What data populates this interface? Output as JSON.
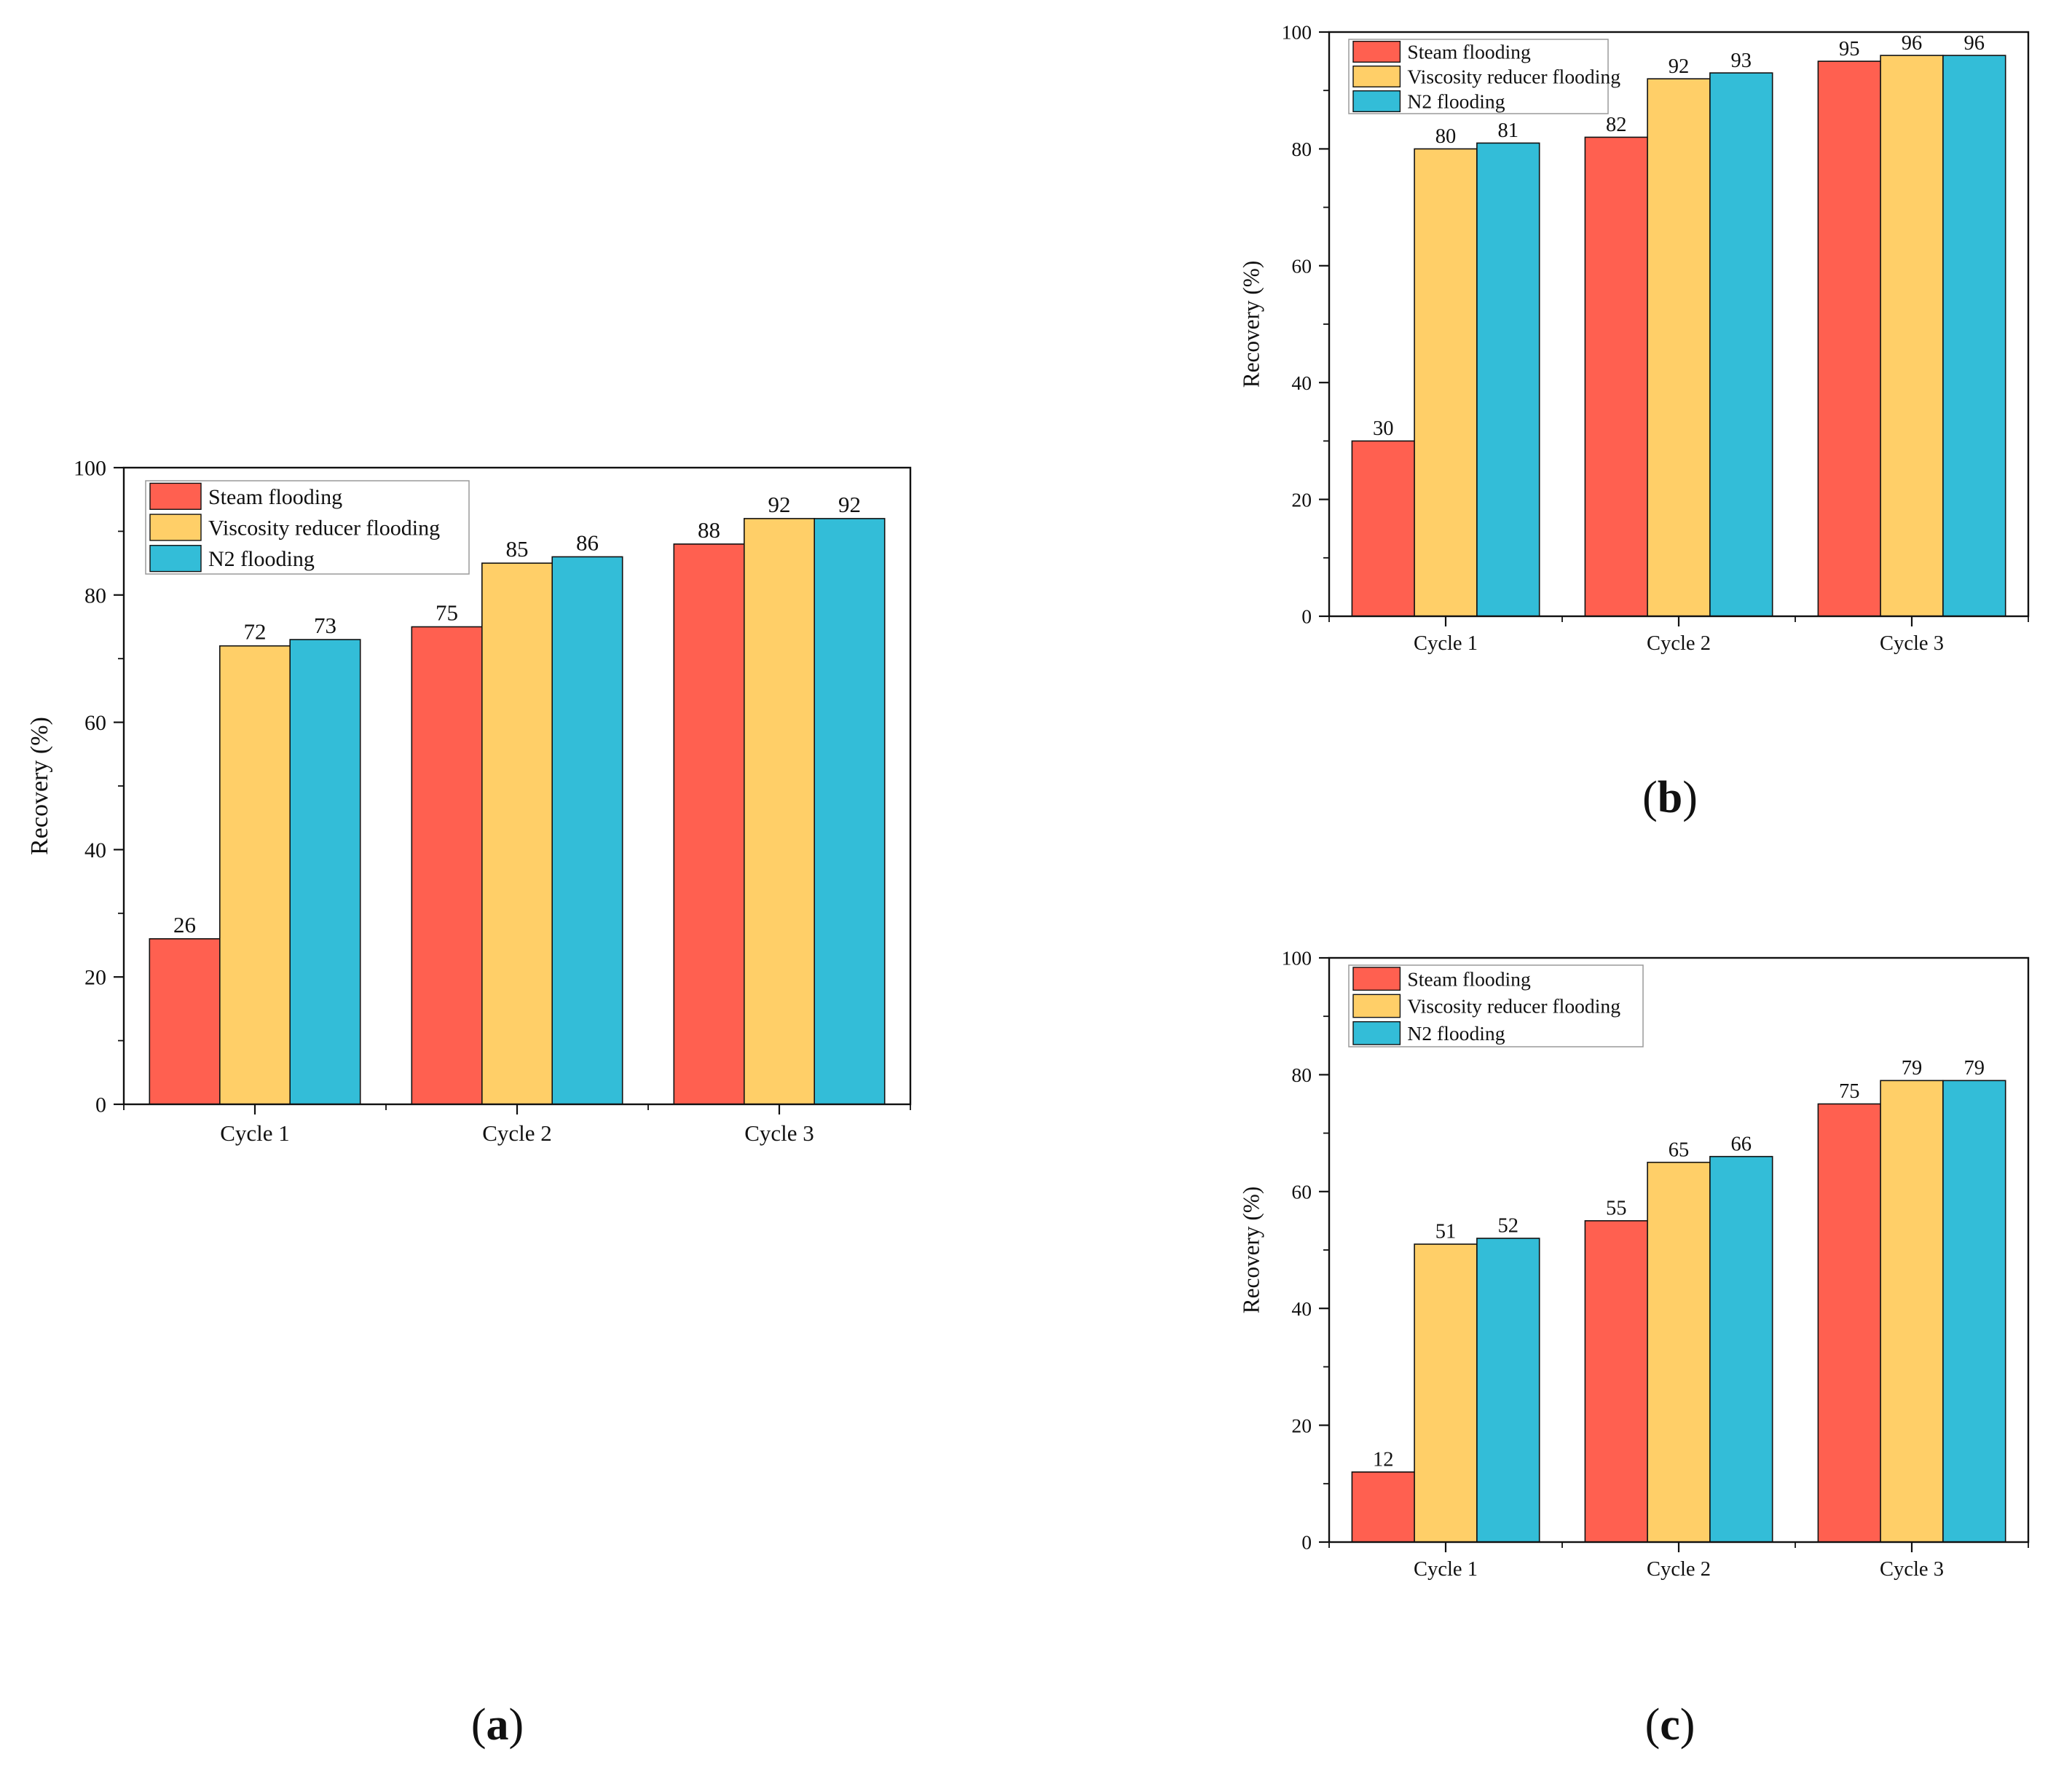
{
  "colors": {
    "steam": "#ff6050",
    "viscosity": "#ffcf68",
    "n2": "#33bdd8",
    "axis": "#111111"
  },
  "chart_data": [
    {
      "panel": "a",
      "panel_label": {
        "open": "(",
        "letter": "a",
        "close": ")"
      },
      "type": "bar",
      "categories": [
        "Cycle 1",
        "Cycle 2",
        "Cycle 3"
      ],
      "series": [
        {
          "name": "Steam flooding",
          "values": [
            26,
            75,
            88
          ],
          "color_key": "steam"
        },
        {
          "name": "Viscosity reducer flooding",
          "values": [
            72,
            85,
            92
          ],
          "color_key": "viscosity"
        },
        {
          "name": "N2 flooding",
          "values": [
            73,
            86,
            92
          ],
          "color_key": "n2"
        }
      ],
      "xlabel": "",
      "ylabel": "Recovery (%)",
      "ylim": [
        0,
        100
      ],
      "yticks": [
        0,
        20,
        40,
        60,
        80,
        100
      ],
      "grid": false,
      "legend_position": "top-left"
    },
    {
      "panel": "b",
      "panel_label": {
        "open": "(",
        "letter": "b",
        "close": ")"
      },
      "type": "bar",
      "categories": [
        "Cycle 1",
        "Cycle 2",
        "Cycle 3"
      ],
      "series": [
        {
          "name": "Steam flooding",
          "values": [
            30,
            82,
            95
          ],
          "color_key": "steam"
        },
        {
          "name": "Viscosity reducer flooding",
          "values": [
            80,
            92,
            96
          ],
          "color_key": "viscosity"
        },
        {
          "name": "N2 flooding",
          "values": [
            81,
            93,
            96
          ],
          "color_key": "n2"
        }
      ],
      "xlabel": "",
      "ylabel": "Recovery (%)",
      "ylim": [
        0,
        100
      ],
      "yticks": [
        0,
        20,
        40,
        60,
        80,
        100
      ],
      "grid": false,
      "legend_position": "top-left"
    },
    {
      "panel": "c",
      "panel_label": {
        "open": "(",
        "letter": "c",
        "close": ")"
      },
      "type": "bar",
      "categories": [
        "Cycle 1",
        "Cycle 2",
        "Cycle 3"
      ],
      "series": [
        {
          "name": "Steam flooding",
          "values": [
            12,
            55,
            75
          ],
          "color_key": "steam"
        },
        {
          "name": "Viscosity reducer flooding",
          "values": [
            51,
            65,
            79
          ],
          "color_key": "viscosity"
        },
        {
          "name": "N2 flooding",
          "values": [
            52,
            66,
            79
          ],
          "color_key": "n2"
        }
      ],
      "xlabel": "",
      "ylabel": "Recovery (%)",
      "ylim": [
        0,
        100
      ],
      "yticks": [
        0,
        20,
        40,
        60,
        80,
        100
      ],
      "grid": false,
      "legend_position": "top-left"
    }
  ]
}
